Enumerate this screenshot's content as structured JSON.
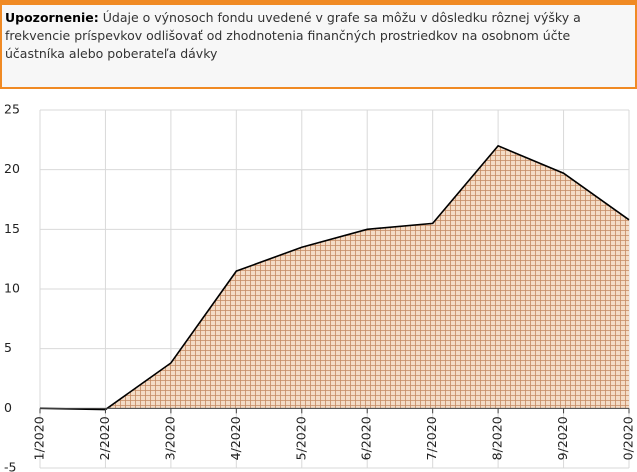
{
  "warning": {
    "label": "Upozornenie:",
    "text": "Údaje o výnosoch fondu uvedené v grafe sa môžu v dôsledku rôznej výšky a frekvencie príspevkov odlišovať od zhodnotenia finančných prostriedkov na osobnom účte účastníka alebo poberateľa dávky"
  },
  "chart_data": {
    "type": "area",
    "categories": [
      "1/2020",
      "2/2020",
      "3/2020",
      "4/2020",
      "5/2020",
      "6/2020",
      "7/2020",
      "8/2020",
      "9/2020",
      "0/2020"
    ],
    "values": [
      0,
      -0.1,
      3.8,
      11.5,
      13.5,
      15,
      15.5,
      22,
      19.7,
      15.8
    ],
    "color": "#c98a5a",
    "ylim": [
      -5,
      25
    ],
    "yticks": [
      -5,
      0,
      5,
      10,
      15,
      20,
      25
    ],
    "grid": true
  }
}
